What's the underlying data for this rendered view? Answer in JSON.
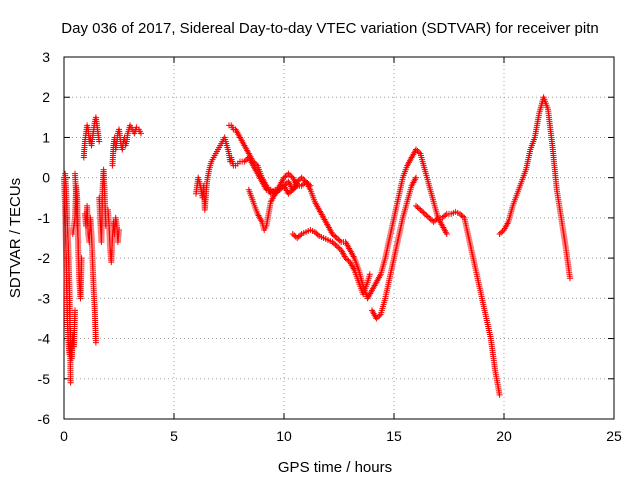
{
  "chart_data": {
    "type": "scatter",
    "title": "Day 036 of 2017, Sidereal Day-to-day VTEC variation (SDTVAR) for receiver pitn",
    "xlabel": "GPS time / hours",
    "ylabel": "SDTVAR / TECUs",
    "xlim": [
      0,
      25
    ],
    "ylim": [
      -6,
      3
    ],
    "xticks": [
      0,
      5,
      10,
      15,
      20,
      25
    ],
    "yticks": [
      -6,
      -5,
      -4,
      -3,
      -2,
      -1,
      0,
      1,
      2,
      3
    ],
    "grid": true,
    "marker": "+",
    "series": [
      {
        "name": "SDTVAR",
        "color": "#ff0000",
        "segments": [
          [
            [
              0.0,
              0.0
            ],
            [
              0.05,
              -0.8
            ],
            [
              0.1,
              -2.0
            ],
            [
              0.15,
              -3.5
            ],
            [
              0.2,
              -4.1
            ],
            [
              0.25,
              -4.4
            ],
            [
              0.3,
              -3.8
            ],
            [
              0.35,
              -4.5
            ],
            [
              0.4,
              -3.9
            ],
            [
              0.45,
              -4.2
            ],
            [
              0.5,
              -3.3
            ]
          ],
          [
            [
              0.05,
              0.1
            ],
            [
              0.1,
              -0.3
            ],
            [
              0.15,
              -1.1
            ],
            [
              0.2,
              -1.8
            ],
            [
              0.25,
              -2.8
            ],
            [
              0.3,
              -5.1
            ]
          ],
          [
            [
              0.4,
              -1.4
            ],
            [
              0.5,
              -1.0
            ],
            [
              0.55,
              -0.2
            ],
            [
              0.6,
              -0.5
            ],
            [
              0.65,
              -1.9
            ],
            [
              0.7,
              -2.6
            ],
            [
              0.75,
              -3.0
            ],
            [
              0.8,
              -2.0
            ]
          ],
          [
            [
              0.5,
              0.1
            ],
            [
              0.55,
              -0.4
            ],
            [
              0.6,
              -1.2
            ],
            [
              0.65,
              -1.6
            ]
          ],
          [
            [
              0.9,
              0.5
            ],
            [
              0.95,
              0.9
            ],
            [
              1.0,
              1.1
            ],
            [
              1.05,
              1.3
            ],
            [
              1.1,
              1.2
            ],
            [
              1.15,
              0.9
            ],
            [
              1.2,
              1.0
            ],
            [
              1.25,
              0.8
            ],
            [
              1.3,
              1.0
            ],
            [
              1.35,
              1.2
            ],
            [
              1.4,
              1.4
            ],
            [
              1.45,
              1.5
            ],
            [
              1.5,
              1.3
            ],
            [
              1.55,
              1.1
            ],
            [
              1.6,
              0.9
            ]
          ],
          [
            [
              0.95,
              -0.9
            ],
            [
              1.0,
              -1.2
            ],
            [
              1.05,
              -0.7
            ],
            [
              1.1,
              -1.4
            ],
            [
              1.15,
              -1.6
            ],
            [
              1.2,
              -1.0
            ],
            [
              1.25,
              -1.4
            ],
            [
              1.3,
              -2.1
            ],
            [
              1.35,
              -2.8
            ],
            [
              1.4,
              -3.3
            ],
            [
              1.45,
              -4.1
            ]
          ],
          [
            [
              1.6,
              -0.5
            ],
            [
              1.65,
              -1.1
            ],
            [
              1.7,
              -1.6
            ],
            [
              1.75,
              -0.3
            ],
            [
              1.8,
              0.2
            ],
            [
              1.85,
              -0.4
            ],
            [
              1.9,
              -1.2
            ]
          ],
          [
            [
              2.0,
              -0.8
            ],
            [
              2.05,
              -1.2
            ],
            [
              2.1,
              -1.8
            ],
            [
              2.15,
              -2.1
            ],
            [
              2.2,
              -1.5
            ],
            [
              2.25,
              -1.1
            ],
            [
              2.3,
              -1.4
            ],
            [
              2.35,
              -1.0
            ],
            [
              2.4,
              -1.2
            ],
            [
              2.45,
              -1.6
            ],
            [
              2.5,
              -1.3
            ]
          ],
          [
            [
              2.2,
              0.3
            ],
            [
              2.25,
              0.8
            ],
            [
              2.3,
              1.0
            ],
            [
              2.35,
              0.7
            ],
            [
              2.4,
              0.9
            ],
            [
              2.45,
              1.1
            ],
            [
              2.5,
              1.2
            ],
            [
              2.55,
              1.0
            ],
            [
              2.6,
              0.8
            ],
            [
              2.65,
              0.7
            ],
            [
              2.7,
              0.9
            ],
            [
              2.75,
              1.0
            ],
            [
              2.8,
              0.8
            ],
            [
              2.85,
              0.9
            ],
            [
              2.9,
              1.1
            ],
            [
              2.95,
              1.2
            ],
            [
              3.0,
              1.3
            ],
            [
              3.1,
              1.2
            ],
            [
              3.2,
              1.1
            ],
            [
              3.3,
              1.25
            ],
            [
              3.4,
              1.2
            ],
            [
              3.5,
              1.1
            ]
          ],
          [
            [
              6.0,
              -0.4
            ],
            [
              6.1,
              0.0
            ],
            [
              6.2,
              -0.2
            ],
            [
              6.3,
              -0.5
            ],
            [
              6.35,
              -0.2
            ],
            [
              6.4,
              -0.8
            ],
            [
              6.5,
              -0.1
            ],
            [
              6.6,
              0.2
            ],
            [
              6.7,
              0.4
            ],
            [
              6.8,
              0.5
            ],
            [
              6.9,
              0.6
            ],
            [
              7.0,
              0.7
            ],
            [
              7.1,
              0.8
            ],
            [
              7.2,
              0.9
            ],
            [
              7.3,
              1.0
            ],
            [
              7.4,
              0.8
            ],
            [
              7.5,
              0.6
            ],
            [
              7.55,
              0.4
            ],
            [
              7.6,
              0.5
            ],
            [
              7.7,
              0.3
            ],
            [
              7.8,
              0.3
            ],
            [
              7.9,
              0.35
            ],
            [
              8.0,
              0.4
            ],
            [
              8.2,
              0.4
            ],
            [
              8.4,
              0.5
            ],
            [
              8.6,
              0.3
            ],
            [
              8.8,
              0.1
            ],
            [
              9.0,
              -0.1
            ],
            [
              9.2,
              -0.3
            ],
            [
              9.4,
              -0.3
            ],
            [
              9.6,
              -0.4
            ],
            [
              9.8,
              -0.3
            ],
            [
              10.0,
              -0.2
            ],
            [
              10.2,
              -0.4
            ],
            [
              10.4,
              -0.3
            ],
            [
              10.6,
              -0.1
            ],
            [
              10.8,
              0.0
            ],
            [
              11.0,
              -0.1
            ],
            [
              11.2,
              -0.3
            ],
            [
              11.4,
              -0.6
            ],
            [
              11.6,
              -0.8
            ],
            [
              11.8,
              -1.0
            ],
            [
              12.0,
              -1.2
            ],
            [
              12.2,
              -1.4
            ],
            [
              12.4,
              -1.5
            ],
            [
              12.6,
              -1.6
            ],
            [
              12.8,
              -1.6
            ],
            [
              13.0,
              -1.8
            ],
            [
              13.2,
              -2.0
            ],
            [
              13.4,
              -2.3
            ],
            [
              13.6,
              -2.7
            ],
            [
              13.8,
              -3.0
            ],
            [
              14.0,
              -2.8
            ],
            [
              14.2,
              -2.6
            ],
            [
              14.4,
              -2.4
            ],
            [
              14.6,
              -2.0
            ],
            [
              14.8,
              -1.5
            ],
            [
              15.0,
              -1.0
            ],
            [
              15.2,
              -0.5
            ],
            [
              15.4,
              0.0
            ],
            [
              15.6,
              0.3
            ],
            [
              15.8,
              0.5
            ],
            [
              16.0,
              0.7
            ],
            [
              16.2,
              0.6
            ],
            [
              16.4,
              0.2
            ],
            [
              16.6,
              -0.2
            ],
            [
              16.8,
              -0.6
            ],
            [
              17.0,
              -1.0
            ],
            [
              17.2,
              -1.2
            ],
            [
              17.4,
              -1.4
            ]
          ],
          [
            [
              7.5,
              1.3
            ],
            [
              7.6,
              1.3
            ],
            [
              7.7,
              1.2
            ],
            [
              7.8,
              1.2
            ],
            [
              8.0,
              1.0
            ],
            [
              8.2,
              0.8
            ],
            [
              8.4,
              0.6
            ],
            [
              8.6,
              0.4
            ],
            [
              8.8,
              0.3
            ],
            [
              9.0,
              0.0
            ],
            [
              9.2,
              -0.2
            ],
            [
              9.4,
              -0.4
            ],
            [
              9.6,
              -0.3
            ],
            [
              9.8,
              -0.3
            ],
            [
              10.0,
              -0.2
            ],
            [
              10.2,
              -0.1
            ],
            [
              10.4,
              -0.3
            ],
            [
              10.6,
              -0.2
            ],
            [
              10.8,
              -0.2
            ],
            [
              11.0,
              -0.1
            ],
            [
              11.2,
              -0.2
            ]
          ],
          [
            [
              8.4,
              -0.3
            ],
            [
              8.6,
              -0.6
            ],
            [
              8.8,
              -0.9
            ],
            [
              9.0,
              -1.1
            ],
            [
              9.1,
              -1.3
            ],
            [
              9.2,
              -1.2
            ],
            [
              9.3,
              -0.9
            ],
            [
              9.4,
              -0.6
            ],
            [
              9.6,
              -0.4
            ],
            [
              9.8,
              -0.2
            ],
            [
              10.0,
              0.0
            ],
            [
              10.2,
              0.1
            ],
            [
              10.4,
              0.0
            ],
            [
              10.6,
              -0.2
            ]
          ],
          [
            [
              10.4,
              -1.4
            ],
            [
              10.6,
              -1.5
            ],
            [
              10.8,
              -1.4
            ],
            [
              11.0,
              -1.35
            ],
            [
              11.2,
              -1.3
            ],
            [
              11.4,
              -1.35
            ],
            [
              11.6,
              -1.45
            ],
            [
              11.8,
              -1.5
            ],
            [
              12.0,
              -1.55
            ],
            [
              12.2,
              -1.6
            ],
            [
              12.4,
              -1.7
            ],
            [
              12.6,
              -1.8
            ],
            [
              12.8,
              -2.0
            ],
            [
              13.0,
              -2.1
            ],
            [
              13.2,
              -2.3
            ],
            [
              13.4,
              -2.6
            ],
            [
              13.6,
              -2.9
            ],
            [
              13.8,
              -2.6
            ],
            [
              13.9,
              -2.4
            ]
          ],
          [
            [
              14.0,
              -3.3
            ],
            [
              14.2,
              -3.5
            ],
            [
              14.4,
              -3.4
            ],
            [
              14.6,
              -3.0
            ],
            [
              14.8,
              -2.5
            ],
            [
              15.0,
              -2.0
            ],
            [
              15.2,
              -1.5
            ],
            [
              15.4,
              -1.0
            ],
            [
              15.6,
              -0.6
            ],
            [
              15.8,
              -0.2
            ],
            [
              16.0,
              0.0
            ]
          ],
          [
            [
              16.0,
              -0.7
            ],
            [
              16.2,
              -0.8
            ],
            [
              16.4,
              -0.9
            ],
            [
              16.6,
              -1.0
            ],
            [
              16.8,
              -1.1
            ],
            [
              17.0,
              -1.0
            ],
            [
              17.2,
              -1.0
            ],
            [
              17.4,
              -0.9
            ],
            [
              17.6,
              -0.9
            ],
            [
              17.8,
              -0.85
            ],
            [
              18.0,
              -0.9
            ],
            [
              18.2,
              -1.0
            ],
            [
              18.4,
              -1.5
            ],
            [
              18.6,
              -2.0
            ],
            [
              18.8,
              -2.5
            ],
            [
              19.0,
              -3.0
            ],
            [
              19.2,
              -3.5
            ],
            [
              19.4,
              -4.0
            ],
            [
              19.6,
              -4.8
            ],
            [
              19.8,
              -5.4
            ]
          ],
          [
            [
              19.8,
              -1.4
            ],
            [
              20.0,
              -1.3
            ],
            [
              20.2,
              -1.1
            ],
            [
              20.4,
              -0.7
            ],
            [
              20.6,
              -0.4
            ],
            [
              20.8,
              -0.1
            ],
            [
              21.0,
              0.2
            ],
            [
              21.2,
              0.7
            ],
            [
              21.4,
              1.0
            ],
            [
              21.6,
              1.6
            ],
            [
              21.8,
              2.0
            ],
            [
              22.0,
              1.7
            ],
            [
              22.2,
              0.8
            ],
            [
              22.4,
              -0.3
            ],
            [
              22.6,
              -1.0
            ],
            [
              22.8,
              -1.7
            ],
            [
              23.0,
              -2.5
            ]
          ]
        ]
      }
    ]
  }
}
